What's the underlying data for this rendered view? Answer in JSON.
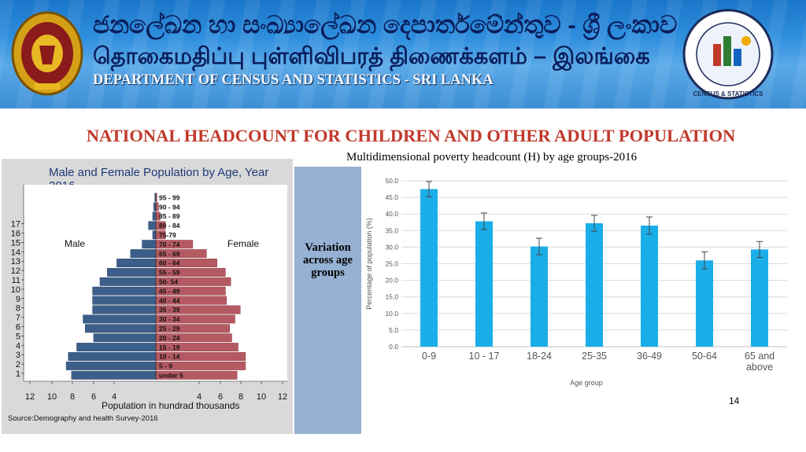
{
  "header": {
    "sinhala_title": "ජනලේඛන හා සංඛ්‍යාලේඛන දෙපාර්තමේන්තුව - ශ්‍රී ලංකාව",
    "tamil_title": "தொகைமதிப்பு புள்ளிவிபரத் திணைக்களம் – இலங்கை",
    "english_title": "DEPARTMENT OF CENSUS AND STATISTICS - SRI LANKA",
    "logo_text": "CENSUS & STATISTICS",
    "colors": {
      "banner": "#2f8fde",
      "title": "#c0392b"
    }
  },
  "slide": {
    "title": "NATIONAL HEADCOUNT  FOR CHILDREN AND OTHER ADULT POPULATION",
    "sidebar_text": "Variation across age groups",
    "page_number": "14"
  },
  "chart_data": [
    {
      "type": "bar",
      "orientation": "horizontal-pyramid",
      "title": "Male and Female Population by Age, Year 2016",
      "xlabel": "Population in hundrad  thousands",
      "source": "Source:Demography and health Survey-2016",
      "left_label": "Male",
      "right_label": "Female",
      "categories": [
        "under 5",
        "5 - 9",
        "10 - 14",
        "15 - 19",
        "20 - 24",
        "25 - 29",
        "30 - 34",
        "35 - 39",
        "40 - 44",
        "45 - 49",
        "50- 54",
        "55 - 59",
        "60 - 64",
        "65 - 69",
        "70 - 74",
        "75-79",
        "80 - 84",
        "85 - 89",
        "90 - 94",
        "95 - 99"
      ],
      "row_numbers": [
        "1",
        "2",
        "3",
        "4",
        "5",
        "6",
        "7",
        "8",
        "9",
        "10",
        "11",
        "12",
        "13",
        "14",
        "15",
        "16",
        "17"
      ],
      "series": [
        {
          "name": "Male",
          "values": [
            8.0,
            8.5,
            8.3,
            7.5,
            5.9,
            6.7,
            6.9,
            6.0,
            6.0,
            6.0,
            5.3,
            4.6,
            3.7,
            2.4,
            1.3,
            0.3,
            0.7,
            0.3,
            0.2,
            0.1
          ],
          "color": "#3b5f8a"
        },
        {
          "name": "Female",
          "values": [
            7.7,
            8.5,
            8.5,
            7.8,
            7.2,
            7.0,
            7.5,
            8.0,
            6.7,
            6.6,
            7.1,
            6.6,
            5.8,
            4.8,
            3.5,
            0.9,
            0.9,
            0.4,
            0.25,
            0.1
          ],
          "color": "#b55a63"
        }
      ],
      "x_ticks": [
        "12",
        "10",
        "8",
        "6",
        "4",
        "4",
        "6",
        "8",
        "10",
        "12"
      ],
      "xlim": [
        -12,
        12
      ]
    },
    {
      "type": "bar",
      "title": "Multidimensional poverty headcount (H) by age groups-2016",
      "xlabel": "Age group",
      "ylabel": "Percentage of population (%)",
      "categories": [
        "0-9",
        "10 - 17",
        "18-24",
        "25-35",
        "36-49",
        "50-64",
        "65 and above"
      ],
      "values": [
        47.5,
        37.8,
        30.2,
        37.2,
        36.5,
        26.0,
        29.3
      ],
      "error": [
        2.3,
        2.5,
        2.5,
        2.4,
        2.6,
        2.6,
        2.4
      ],
      "ylim": [
        0,
        50
      ],
      "y_ticks": [
        "0.0",
        "5.0",
        "10.0",
        "15.0",
        "20.0",
        "25.0",
        "30.0",
        "35.0",
        "40.0",
        "45.0",
        "50.0"
      ],
      "grid": true,
      "bar_color": "#1aaee8"
    }
  ]
}
